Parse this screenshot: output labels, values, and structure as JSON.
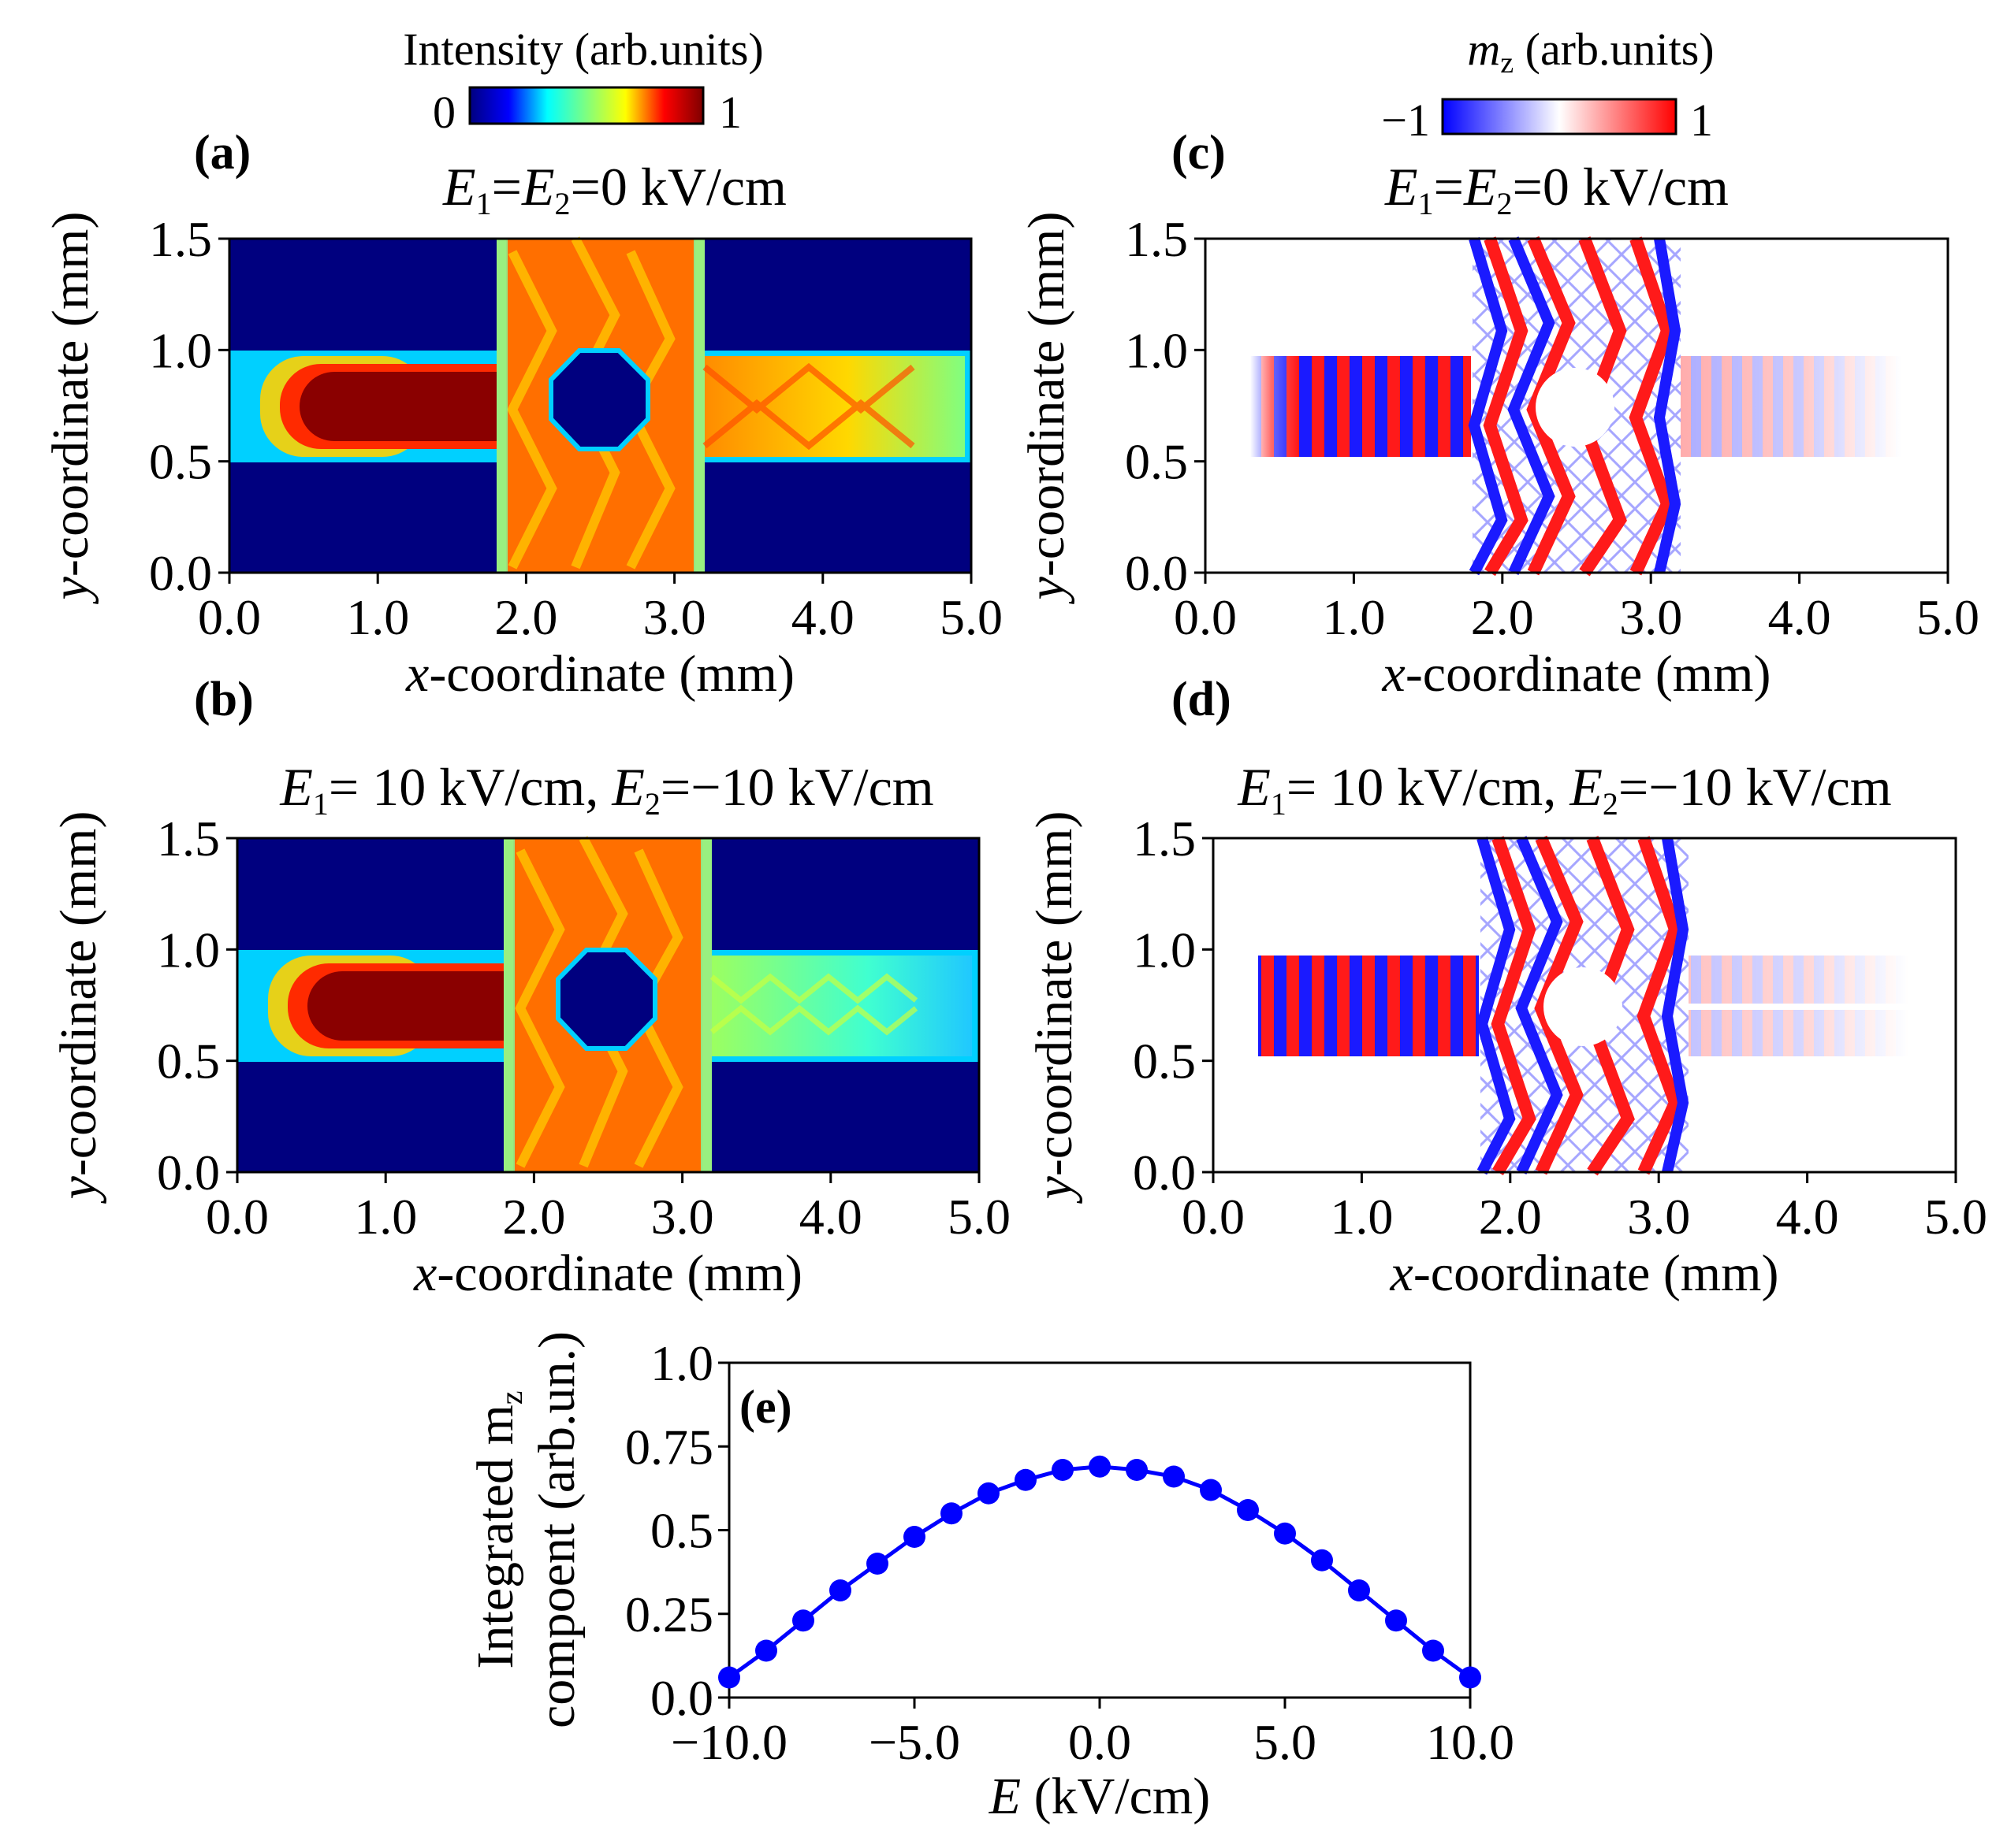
{
  "colorbars": {
    "intensity": {
      "label": "Intensity (arb.units)",
      "min_label": "0",
      "max_label": "1",
      "stops": [
        "#00007f",
        "#0000ff",
        "#00ffff",
        "#7fff7f",
        "#ffff00",
        "#ff0000",
        "#7f0000"
      ]
    },
    "mz": {
      "label_var": "m",
      "label_sub": "z",
      "label_rest": " (arb.units)",
      "min_label": "−1",
      "max_label": "1",
      "stops": [
        "#0000ff",
        "#ffffff",
        "#ff0000"
      ]
    }
  },
  "panels": {
    "a": {
      "letter": "(a)",
      "title": {
        "e1": "E",
        "s1": "1",
        "mid": "=",
        "e2": "E",
        "s2": "2",
        "rest": "=0 kV/cm"
      }
    },
    "b": {
      "letter": "(b)",
      "title": {
        "e1": "E",
        "s1": "1",
        "mid": "= 10 kV/cm, ",
        "e2": "E",
        "s2": "2",
        "rest": "=−10 kV/cm"
      }
    },
    "c": {
      "letter": "(c)",
      "title": {
        "e1": "E",
        "s1": "1",
        "mid": "=",
        "e2": "E",
        "s2": "2",
        "rest": "=0 kV/cm"
      }
    },
    "d": {
      "letter": "(d)",
      "title": {
        "e1": "E",
        "s1": "1",
        "mid": "= 10 kV/cm, ",
        "e2": "E",
        "s2": "2",
        "rest": "=−10 kV/cm"
      }
    },
    "e": {
      "letter": "(e)"
    }
  },
  "axes_maps": {
    "xlabel_var": "x",
    "xlabel_rest": "-coordinate (mm)",
    "ylabel_var": "y",
    "ylabel_rest": "-coordinate (mm)",
    "xticks": [
      "0.0",
      "1.0",
      "2.0",
      "3.0",
      "4.0",
      "5.0"
    ],
    "yticks": [
      "0.0",
      "0.5",
      "1.0",
      "1.5"
    ]
  },
  "chart_data": [
    {
      "panel": "a",
      "type": "heatmap",
      "quantity": "Intensity (arb.units)",
      "xlim": [
        0.0,
        5.0
      ],
      "ylim": [
        0.0,
        1.5
      ],
      "geometry_mm": {
        "waveguide_y": [
          0.5,
          1.0
        ],
        "cross_x": [
          1.8,
          3.2
        ],
        "hole_center": [
          2.5,
          0.75
        ],
        "hole_radius": 0.25
      }
    },
    {
      "panel": "b",
      "type": "heatmap",
      "quantity": "Intensity (arb.units)",
      "xlim": [
        0.0,
        5.0
      ],
      "ylim": [
        0.0,
        1.5
      ],
      "geometry_mm": {
        "waveguide_y": [
          0.5,
          1.0
        ],
        "cross_x": [
          1.8,
          3.2
        ],
        "hole_center": [
          2.5,
          0.75
        ],
        "hole_radius": 0.25
      }
    },
    {
      "panel": "c",
      "type": "heatmap",
      "quantity": "m_z (arb.units)",
      "xlim": [
        0.0,
        5.0
      ],
      "ylim": [
        0.0,
        1.5
      ],
      "geometry_mm": {
        "waveguide_y": [
          0.55,
          0.97
        ],
        "source_x": [
          0.3,
          1.8
        ],
        "cross_x": [
          1.8,
          3.2
        ],
        "out_x": [
          3.2,
          4.7
        ]
      }
    },
    {
      "panel": "d",
      "type": "heatmap",
      "quantity": "m_z (arb.units)",
      "xlim": [
        0.0,
        5.0
      ],
      "ylim": [
        0.0,
        1.5
      ],
      "geometry_mm": {
        "waveguide_y": [
          0.55,
          0.97
        ],
        "source_x": [
          0.3,
          1.8
        ],
        "cross_x": [
          1.8,
          3.2
        ],
        "out_x": [
          3.2,
          4.7
        ]
      }
    },
    {
      "panel": "e",
      "type": "line",
      "marker": "circle",
      "color": "#0000ff",
      "xlabel_var": "E",
      "xlabel_rest": " (kV/cm)",
      "ylabel_line1": "Integrated m",
      "ylabel_sub": "z",
      "ylabel_line2": "compoent (arb.un.)",
      "xlim": [
        -10,
        10
      ],
      "ylim": [
        0.0,
        1.0
      ],
      "xticks": [
        "−10.0",
        "−5.0",
        "0.0",
        "5.0",
        "10.0"
      ],
      "xtick_values": [
        -10,
        -5,
        0,
        5,
        10
      ],
      "yticks": [
        "0.0",
        "0.25",
        "0.5",
        "0.75",
        "1.0"
      ],
      "ytick_values": [
        0.0,
        0.25,
        0.5,
        0.75,
        1.0
      ],
      "x": [
        -10,
        -9,
        -8,
        -7,
        -6,
        -5,
        -4,
        -3,
        -2,
        -1,
        0,
        1,
        2,
        3,
        4,
        5,
        6,
        7,
        8,
        9,
        10
      ],
      "y": [
        0.06,
        0.14,
        0.23,
        0.32,
        0.4,
        0.48,
        0.55,
        0.61,
        0.65,
        0.68,
        0.69,
        0.68,
        0.66,
        0.62,
        0.56,
        0.49,
        0.41,
        0.32,
        0.23,
        0.14,
        0.06
      ]
    }
  ]
}
